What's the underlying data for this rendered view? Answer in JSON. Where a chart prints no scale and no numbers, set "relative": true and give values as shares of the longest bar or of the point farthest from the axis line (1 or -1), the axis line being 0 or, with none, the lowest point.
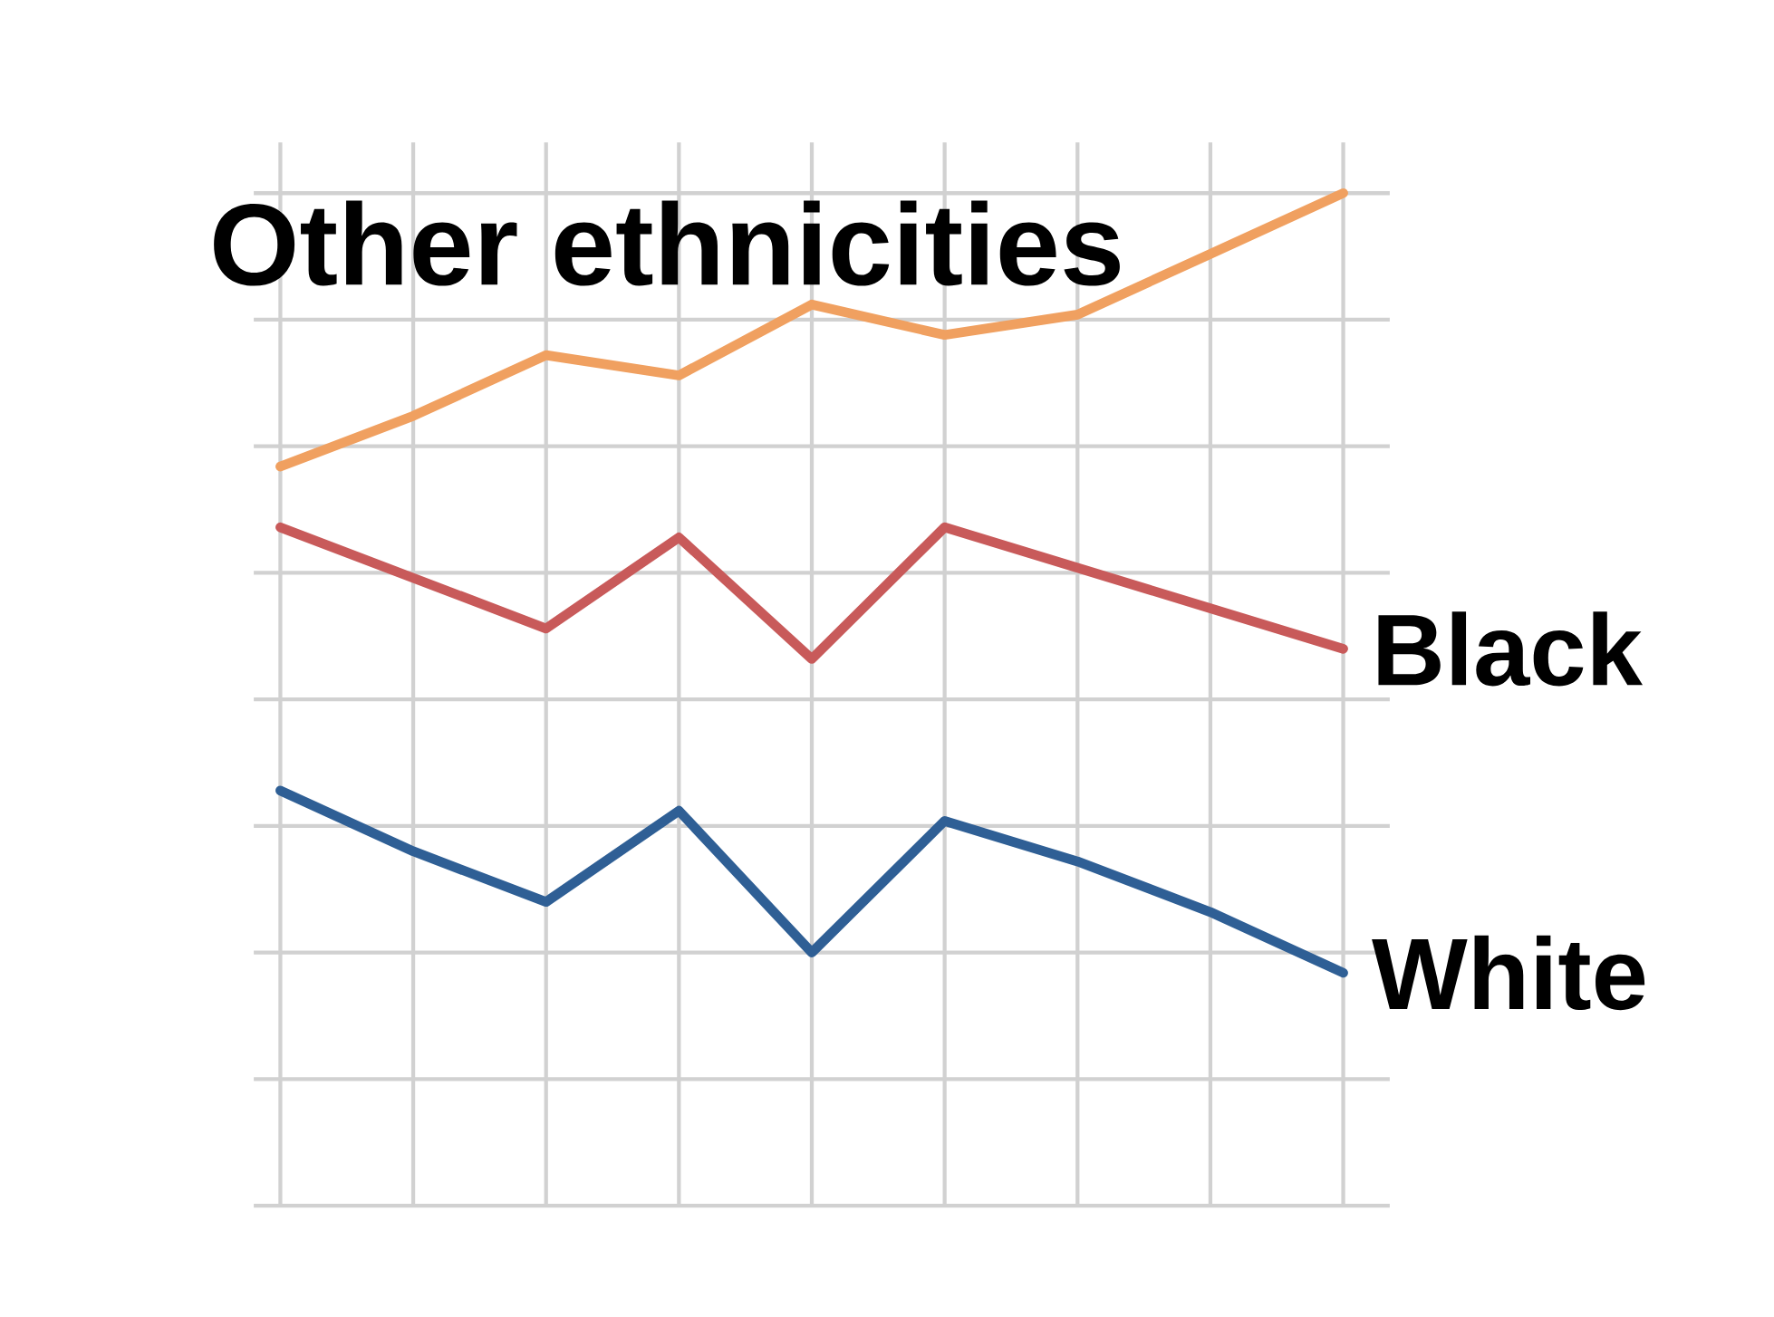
{
  "chart_data": {
    "type": "line",
    "relative": true,
    "grid": true,
    "categories": [
      null,
      null,
      null,
      null,
      null,
      null,
      null,
      null,
      null
    ],
    "series": [
      {
        "name": "Other ethnicities",
        "color": "#f0a060",
        "values": [
          0.73,
          0.78,
          0.84,
          0.82,
          0.89,
          0.86,
          0.88,
          0.94,
          1.0
        ]
      },
      {
        "name": "Black",
        "color": "#c85a5a",
        "values": [
          0.67,
          0.62,
          0.57,
          0.66,
          0.54,
          0.67,
          0.63,
          0.59,
          0.55
        ]
      },
      {
        "name": "White",
        "color": "#2f5f95",
        "values": [
          0.41,
          0.35,
          0.3,
          0.39,
          0.25,
          0.38,
          0.34,
          0.29,
          0.23
        ]
      }
    ]
  }
}
